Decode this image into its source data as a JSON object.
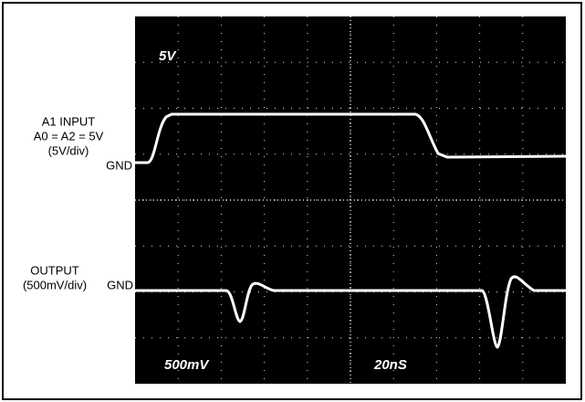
{
  "screen": {
    "labels": {
      "volts_top": "5V",
      "volts_bottom": "500mV",
      "time": "20nS"
    }
  },
  "channels": [
    {
      "lines": [
        "A1 INPUT",
        "A0 = A2 = 5V",
        "(5V/div)"
      ],
      "ground": "GND"
    },
    {
      "lines": [
        "OUTPUT",
        "(500mV/div)"
      ],
      "ground": "GND"
    }
  ]
}
